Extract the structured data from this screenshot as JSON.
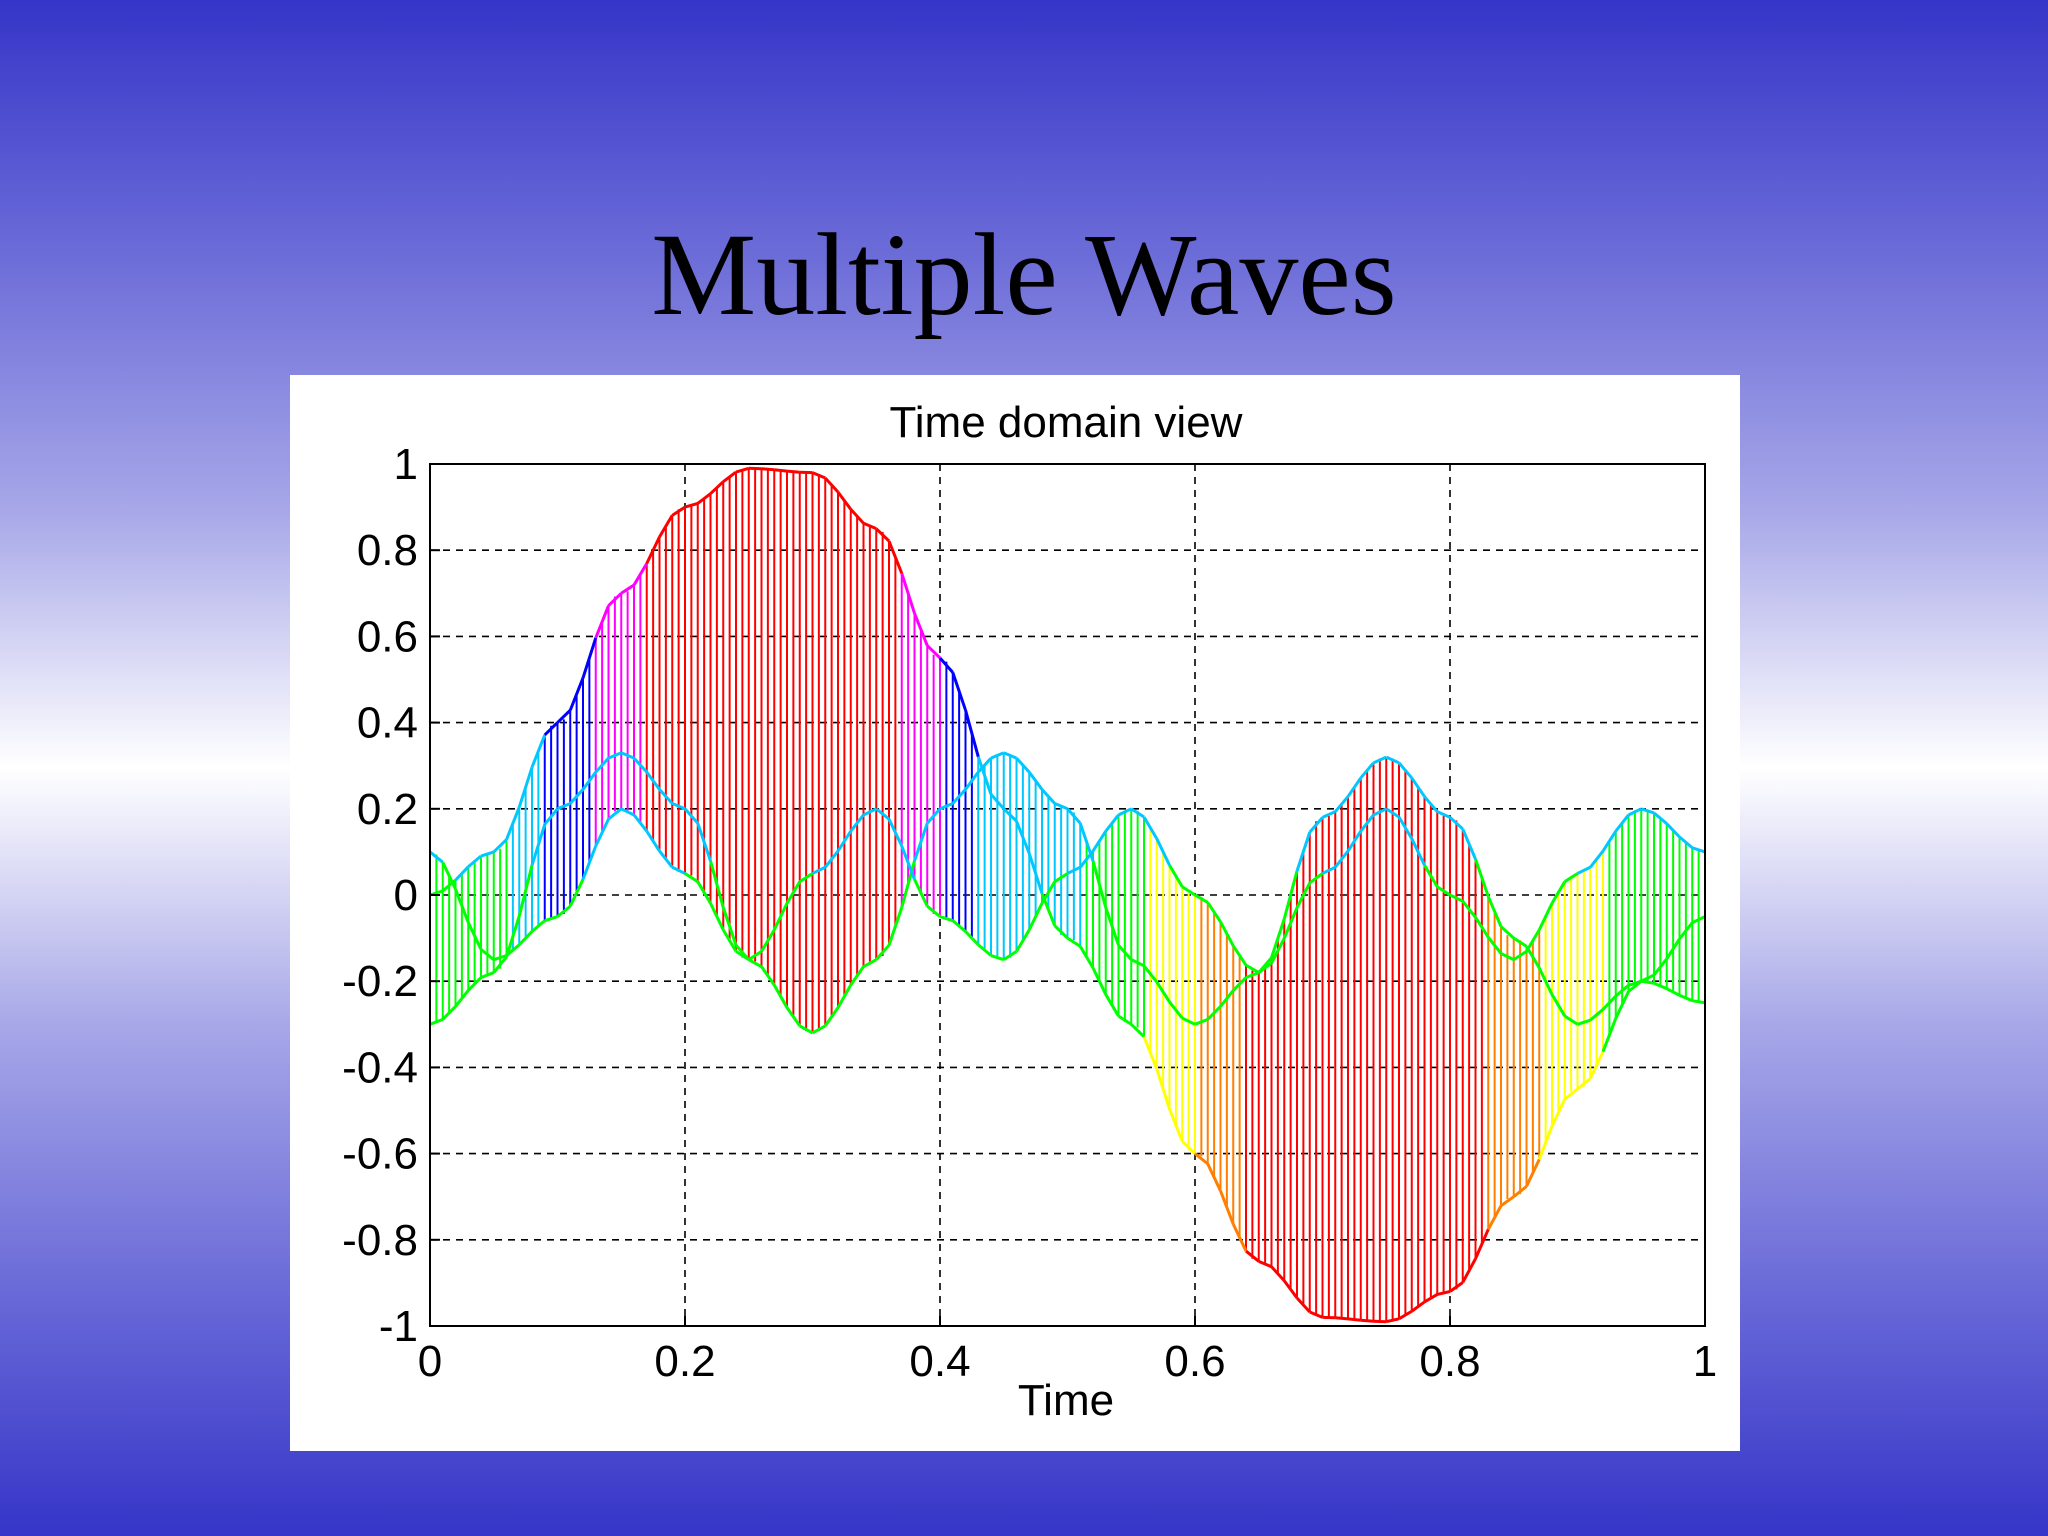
{
  "slide": {
    "title": "Multiple Waves"
  },
  "chart_data": {
    "type": "line",
    "title": "Time domain view",
    "xlabel": "Time",
    "ylabel": "",
    "xlim": [
      0,
      1
    ],
    "ylim": [
      -1,
      1
    ],
    "grid": true,
    "grid_style": "dashed",
    "x_ticks": [
      "0",
      "0.2",
      "0.4",
      "0.6",
      "0.8",
      "1"
    ],
    "y_ticks": [
      "-1",
      "-0.8",
      "-0.6",
      "-0.4",
      "-0.2",
      "0",
      "0.2",
      "0.4",
      "0.6",
      "0.8",
      "1"
    ],
    "fill": "vertical stems between curves, colored by amplitude",
    "colormap": [
      "#0000ff",
      "#00c8ff",
      "#00ff00",
      "#ffff00",
      "#ff8000",
      "#ff0000",
      "#ff00ff"
    ],
    "series": [
      {
        "x": [
          0,
          0.05,
          0.1,
          0.15,
          0.2,
          0.25,
          0.3,
          0.35,
          0.4,
          0.45,
          0.5,
          0.55,
          0.6,
          0.65,
          0.7,
          0.75,
          0.8,
          0.85,
          0.9,
          0.95,
          1
        ],
        "y": [
          0,
          0.1,
          0.4,
          0.7,
          0.9,
          0.99,
          0.98,
          0.85,
          0.55,
          0.2,
          -0.1,
          -0.3,
          -0.6,
          -0.85,
          -0.98,
          -0.99,
          -0.92,
          -0.7,
          -0.45,
          -0.2,
          -0.05
        ]
      },
      {
        "x": [
          0,
          0.05,
          0.1,
          0.15,
          0.2,
          0.25,
          0.3,
          0.35,
          0.4,
          0.45,
          0.5,
          0.55,
          0.6,
          0.65,
          0.7,
          0.75,
          0.8,
          0.85,
          0.9,
          0.95,
          1
        ],
        "y": [
          -0.3,
          -0.18,
          0.2,
          0.33,
          0.2,
          -0.15,
          -0.32,
          -0.15,
          0.2,
          0.33,
          0.2,
          -0.15,
          -0.3,
          -0.18,
          0.18,
          0.32,
          0.18,
          -0.1,
          -0.3,
          -0.2,
          -0.25
        ]
      },
      {
        "x": [
          0,
          0.05,
          0.1,
          0.15,
          0.2,
          0.25,
          0.3,
          0.35,
          0.4,
          0.45,
          0.5,
          0.55,
          0.6,
          0.65,
          0.7,
          0.75,
          0.8,
          0.85,
          0.9,
          0.95,
          1
        ],
        "y": [
          0.1,
          -0.15,
          -0.05,
          0.2,
          0.05,
          -0.15,
          0.05,
          0.2,
          -0.05,
          -0.15,
          0.05,
          0.2,
          0.0,
          -0.18,
          0.05,
          0.2,
          0.0,
          -0.15,
          0.05,
          0.2,
          0.1
        ]
      }
    ]
  }
}
